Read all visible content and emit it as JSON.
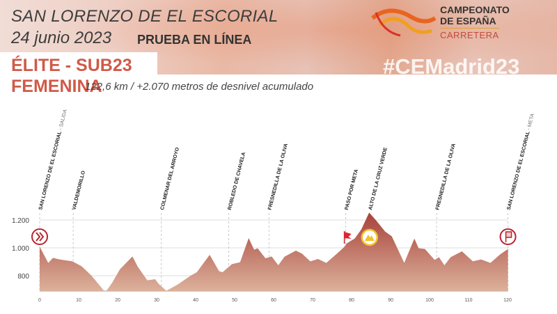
{
  "header": {
    "location": "SAN LORENZO DE EL ESCORIAL",
    "date": "24 junio 2023",
    "event_type": "PRUEBA EN LÍNEA",
    "category_line1": "ÉLITE - SUB23",
    "category_line2": "FEMENINA",
    "distance_info": "122,6 km / +2.070 metros de desnivel acumulado",
    "hashtag": "#CEMadrid23"
  },
  "logo": {
    "line1": "CAMPEONATO",
    "line2": "DE ESPAÑA",
    "line3": "CARRETERA"
  },
  "chart_data": {
    "type": "area",
    "xlabel": "",
    "ylabel": "",
    "xlim": [
      0,
      122.6
    ],
    "ylim": [
      680,
      1260
    ],
    "x_ticks": [
      0,
      10,
      20,
      30,
      40,
      50,
      60,
      70,
      80,
      90,
      100,
      110,
      120
    ],
    "y_ticks": [
      {
        "value": 800,
        "label": "800"
      },
      {
        "value": 1000,
        "label": "1.000"
      },
      {
        "value": 1200,
        "label": "1.200"
      }
    ],
    "grid": "horizontal",
    "colors": {
      "fill_top": "#a8423a",
      "fill_bottom": "#dcb29c",
      "accent": "#c4202b",
      "mountain": "#f2c12e"
    },
    "profile": [
      [
        0,
        1008
      ],
      [
        2.2,
        892
      ],
      [
        3.4,
        928
      ],
      [
        5.1,
        917
      ],
      [
        8.4,
        903
      ],
      [
        10.8,
        867
      ],
      [
        13.3,
        800
      ],
      [
        16.5,
        692
      ],
      [
        17,
        687
      ],
      [
        18.6,
        750
      ],
      [
        20.6,
        847
      ],
      [
        23.8,
        938
      ],
      [
        25.1,
        867
      ],
      [
        27.6,
        767
      ],
      [
        29.6,
        775
      ],
      [
        30.5,
        742
      ],
      [
        32.5,
        692
      ],
      [
        35.4,
        737
      ],
      [
        38.7,
        800
      ],
      [
        40.3,
        825
      ],
      [
        43.6,
        950
      ],
      [
        46,
        833
      ],
      [
        46.9,
        825
      ],
      [
        49.3,
        883
      ],
      [
        51.4,
        897
      ],
      [
        53.6,
        1070
      ],
      [
        55,
        987
      ],
      [
        55.9,
        997
      ],
      [
        57.9,
        925
      ],
      [
        59.5,
        938
      ],
      [
        61.2,
        875
      ],
      [
        62.8,
        937
      ],
      [
        65.7,
        980
      ],
      [
        67.3,
        958
      ],
      [
        69.4,
        903
      ],
      [
        71.4,
        920
      ],
      [
        73.5,
        892
      ],
      [
        75.9,
        950
      ],
      [
        78,
        1003
      ],
      [
        78.8,
        1033
      ],
      [
        80.8,
        1067
      ],
      [
        82.5,
        1133
      ],
      [
        84.5,
        1253
      ],
      [
        86.2,
        1200
      ],
      [
        88.6,
        1117
      ],
      [
        90.3,
        1083
      ],
      [
        93.5,
        892
      ],
      [
        96.1,
        1067
      ],
      [
        97.2,
        997
      ],
      [
        98.8,
        992
      ],
      [
        101.3,
        913
      ],
      [
        102.4,
        933
      ],
      [
        103.8,
        875
      ],
      [
        105.4,
        933
      ],
      [
        108.3,
        975
      ],
      [
        111.1,
        903
      ],
      [
        113.2,
        917
      ],
      [
        115.6,
        892
      ],
      [
        118.1,
        953
      ],
      [
        120.1,
        992
      ]
    ],
    "waypoints": [
      {
        "km": 0,
        "name": "SAN LORENZO DE EL ESCORIAL",
        "suffix": " - SALIDA",
        "icon": "start-icon"
      },
      {
        "km": 8.6,
        "name": "VALDEMORILLO",
        "suffix": ""
      },
      {
        "km": 31.2,
        "name": "COLMENAR DEL ARROYO",
        "suffix": ""
      },
      {
        "km": 48.5,
        "name": "ROBLEDO DE CHAVELA",
        "suffix": ""
      },
      {
        "km": 58.8,
        "name": "FRESNEDILLA DE LA OLIVA",
        "suffix": ""
      },
      {
        "km": 78.5,
        "name": "PASO POR META",
        "suffix": "",
        "icon": "flag-icon"
      },
      {
        "km": 84.6,
        "name": "ALTO DE LA CRUZ VERDE",
        "suffix": "",
        "icon": "mountain-icon"
      },
      {
        "km": 101.8,
        "name": "FRESNEDILLA DE LA OLIVA",
        "suffix": ""
      },
      {
        "km": 120.1,
        "name": "SAN LORENZO DE EL ESCORIAL",
        "suffix": " - META",
        "icon": "finish-icon"
      }
    ]
  }
}
